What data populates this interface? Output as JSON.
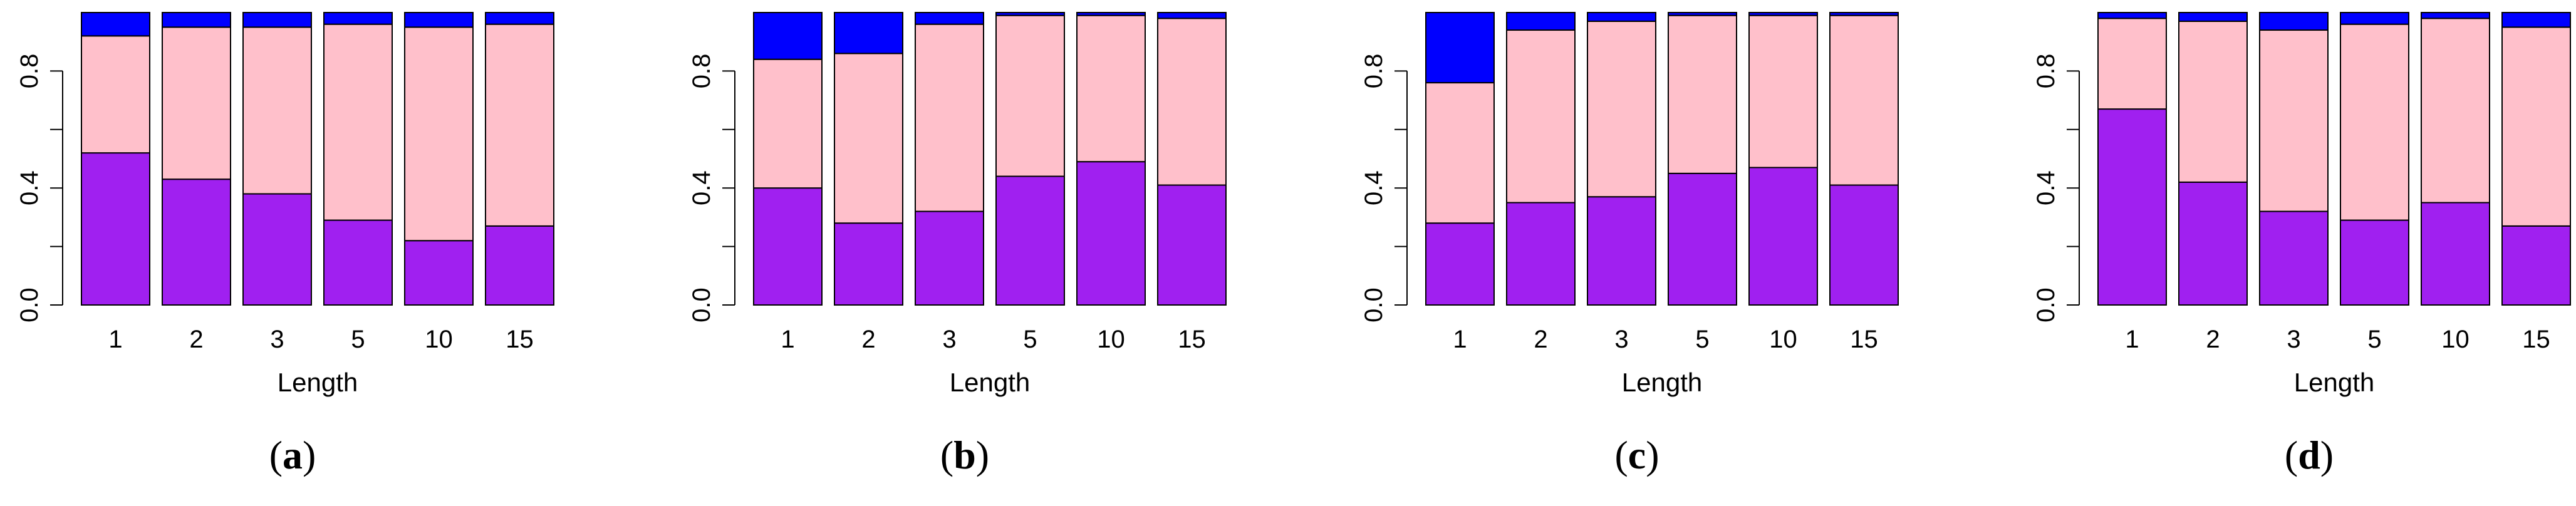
{
  "colors": {
    "bottom": "#A020F0",
    "middle": "#FFC0CB",
    "top": "#0000FF"
  },
  "chart_data": [
    {
      "type": "bar",
      "stacked": true,
      "label": "a",
      "categories": [
        "1",
        "2",
        "3",
        "5",
        "10",
        "15"
      ],
      "series": [
        {
          "name": "bottom",
          "values": [
            0.52,
            0.43,
            0.38,
            0.29,
            0.22,
            0.27
          ]
        },
        {
          "name": "middle",
          "values": [
            0.4,
            0.52,
            0.57,
            0.67,
            0.73,
            0.69
          ]
        },
        {
          "name": "top",
          "values": [
            0.08,
            0.05,
            0.05,
            0.04,
            0.05,
            0.04
          ]
        }
      ],
      "xlabel": "Length",
      "ylabel": "",
      "ylim": [
        0,
        1
      ],
      "yticks": [
        "0.0",
        "0.4",
        "0.8"
      ]
    },
    {
      "type": "bar",
      "stacked": true,
      "label": "b",
      "categories": [
        "1",
        "2",
        "3",
        "5",
        "10",
        "15"
      ],
      "series": [
        {
          "name": "bottom",
          "values": [
            0.4,
            0.28,
            0.32,
            0.44,
            0.49,
            0.41
          ]
        },
        {
          "name": "middle",
          "values": [
            0.44,
            0.58,
            0.64,
            0.55,
            0.5,
            0.57
          ]
        },
        {
          "name": "top",
          "values": [
            0.16,
            0.14,
            0.04,
            0.01,
            0.01,
            0.02
          ]
        }
      ],
      "xlabel": "Length",
      "ylabel": "",
      "ylim": [
        0,
        1
      ],
      "yticks": [
        "0.0",
        "0.4",
        "0.8"
      ]
    },
    {
      "type": "bar",
      "stacked": true,
      "label": "c",
      "categories": [
        "1",
        "2",
        "3",
        "5",
        "10",
        "15"
      ],
      "series": [
        {
          "name": "bottom",
          "values": [
            0.28,
            0.35,
            0.37,
            0.45,
            0.47,
            0.41
          ]
        },
        {
          "name": "middle",
          "values": [
            0.48,
            0.59,
            0.6,
            0.54,
            0.52,
            0.58
          ]
        },
        {
          "name": "top",
          "values": [
            0.24,
            0.06,
            0.03,
            0.01,
            0.01,
            0.01
          ]
        }
      ],
      "xlabel": "Length",
      "ylabel": "",
      "ylim": [
        0,
        1
      ],
      "yticks": [
        "0.0",
        "0.4",
        "0.8"
      ]
    },
    {
      "type": "bar",
      "stacked": true,
      "label": "d",
      "categories": [
        "1",
        "2",
        "3",
        "5",
        "10",
        "15"
      ],
      "series": [
        {
          "name": "bottom",
          "values": [
            0.67,
            0.42,
            0.32,
            0.29,
            0.35,
            0.27
          ]
        },
        {
          "name": "middle",
          "values": [
            0.31,
            0.55,
            0.62,
            0.67,
            0.63,
            0.68
          ]
        },
        {
          "name": "top",
          "values": [
            0.02,
            0.03,
            0.06,
            0.04,
            0.02,
            0.05
          ]
        }
      ],
      "xlabel": "Length",
      "ylabel": "",
      "ylim": [
        0,
        1
      ],
      "yticks": [
        "0.0",
        "0.4",
        "0.8"
      ]
    }
  ]
}
